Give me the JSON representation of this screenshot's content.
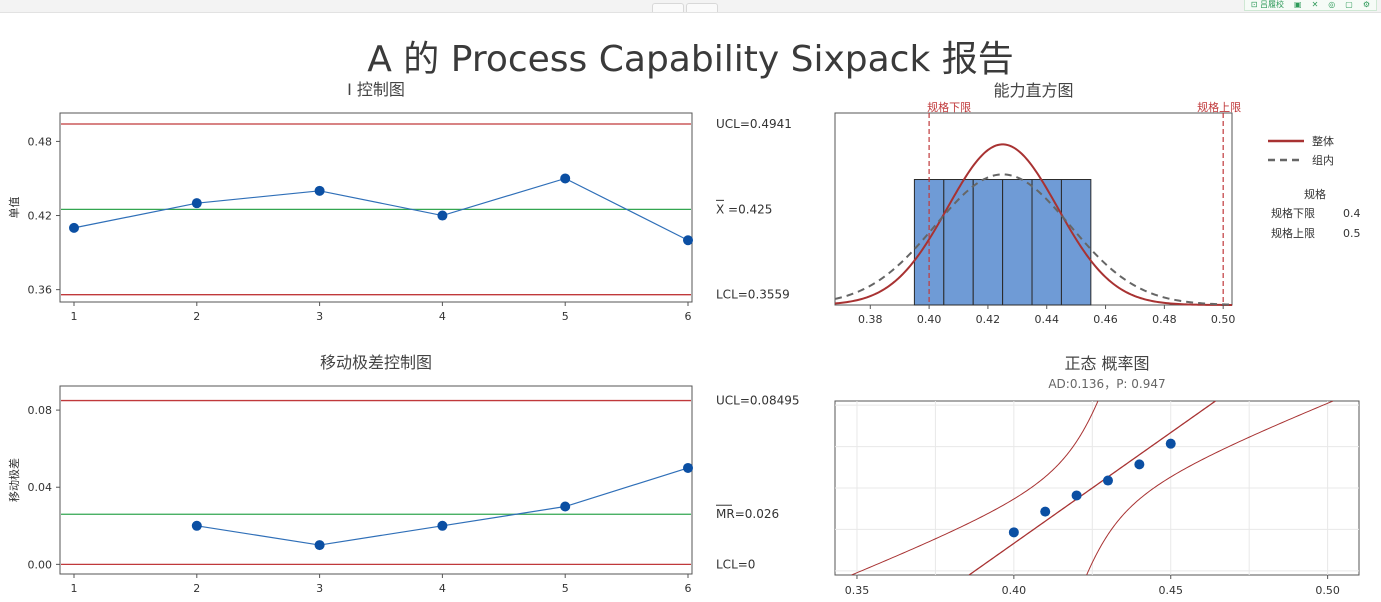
{
  "toolbar": {
    "items": [
      {
        "label": "⊡ 吕履校",
        "icon": "copy-icon"
      },
      {
        "label": "▣",
        "icon": "export-icon"
      },
      {
        "label": "✕",
        "icon": "close-icon"
      },
      {
        "label": "◎",
        "icon": "settings-icon"
      },
      {
        "label": "▢",
        "icon": "window-icon"
      },
      {
        "label": "⚙",
        "icon": "gear-icon"
      }
    ]
  },
  "main_title": "A 的 Process Capability Sixpack 报告",
  "colors": {
    "data_blue": "#2f6fb8",
    "marker_blue": "#0b4fa3",
    "limit_red": "#c0393b",
    "center_green": "#33a650",
    "curve_red": "#a83232",
    "curve_gray": "#666666",
    "bar_fill": "#6f9bd6",
    "bar_stroke": "#2a2a2a",
    "axis": "#555555"
  },
  "chart_data": [
    {
      "type": "line",
      "title": "I 控制图",
      "ylabel": "单值",
      "x": [
        1,
        2,
        3,
        4,
        5,
        6
      ],
      "values": [
        0.41,
        0.43,
        0.44,
        0.42,
        0.45,
        0.4
      ],
      "xticks": [
        "1",
        "2",
        "3",
        "4",
        "5",
        "6"
      ],
      "yticks": [
        "0.36",
        "0.42",
        "0.48"
      ],
      "ylim": [
        0.35,
        0.503
      ],
      "limits": [
        {
          "name": "UCL",
          "value": 0.4941,
          "label": "UCL=0.4941",
          "kind": "limit"
        },
        {
          "name": "X",
          "value": 0.425,
          "label": "X =0.425",
          "kind": "center"
        },
        {
          "name": "LCL",
          "value": 0.3559,
          "label": "LCL=0.3559",
          "kind": "limit"
        }
      ],
      "grid": false
    },
    {
      "type": "line",
      "title": "移动极差控制图",
      "ylabel": "移动极差",
      "x": [
        2,
        3,
        4,
        5,
        6
      ],
      "values": [
        0.02,
        0.01,
        0.02,
        0.03,
        0.05
      ],
      "xticks": [
        "1",
        "2",
        "3",
        "4",
        "5",
        "6"
      ],
      "yticks": [
        "0.00",
        "0.04",
        "0.08"
      ],
      "ylim": [
        -0.005,
        0.0925
      ],
      "limits": [
        {
          "name": "UCL",
          "value": 0.08495,
          "label": "UCL=0.08495",
          "kind": "limit"
        },
        {
          "name": "MR",
          "value": 0.026,
          "label": "MR=0.026",
          "kind": "center"
        },
        {
          "name": "LCL",
          "value": 0.0,
          "label": "LCL=0",
          "kind": "limit"
        }
      ],
      "grid": false
    },
    {
      "type": "bar",
      "title": "能力直方图",
      "bins": [
        {
          "from": 0.395,
          "to": 0.405,
          "count": 1
        },
        {
          "from": 0.405,
          "to": 0.415,
          "count": 1
        },
        {
          "from": 0.415,
          "to": 0.425,
          "count": 1
        },
        {
          "from": 0.425,
          "to": 0.435,
          "count": 1
        },
        {
          "from": 0.435,
          "to": 0.445,
          "count": 1
        },
        {
          "from": 0.445,
          "to": 0.455,
          "count": 1
        }
      ],
      "xticks": [
        "0.38",
        "0.40",
        "0.42",
        "0.44",
        "0.46",
        "0.48",
        "0.50"
      ],
      "xlim": [
        0.368,
        0.503
      ],
      "ylim": [
        0,
        1.53
      ],
      "curves": [
        {
          "name": "整体",
          "mean": 0.425,
          "sd": 0.0187,
          "style": "solid"
        },
        {
          "name": "组内",
          "mean": 0.425,
          "sd": 0.023,
          "style": "dashed"
        }
      ],
      "spec_lines": [
        {
          "label": "规格下限",
          "value": 0.4
        },
        {
          "label": "规格上限",
          "value": 0.5
        }
      ],
      "legend": {
        "position": "right",
        "entries": [
          "整体",
          "组内"
        ],
        "spec_title": "规格",
        "spec_rows": [
          {
            "name": "规格下限",
            "value": "0.4"
          },
          {
            "name": "规格上限",
            "value": "0.5"
          }
        ]
      }
    },
    {
      "type": "scatter",
      "title": "正态 概率图",
      "subtitle": "AD:0.136，P: 0.947",
      "x": [
        0.4,
        0.41,
        0.42,
        0.43,
        0.44,
        0.45
      ],
      "y": [
        -1.07,
        -0.57,
        -0.18,
        0.18,
        0.57,
        1.07
      ],
      "xticks": [
        "0.35",
        "0.40",
        "0.45",
        "0.50"
      ],
      "xlim": [
        0.343,
        0.51
      ],
      "ylim": [
        -2.1,
        2.1
      ],
      "fit": {
        "mean": 0.425,
        "sd": 0.0187
      },
      "grid": true
    }
  ]
}
